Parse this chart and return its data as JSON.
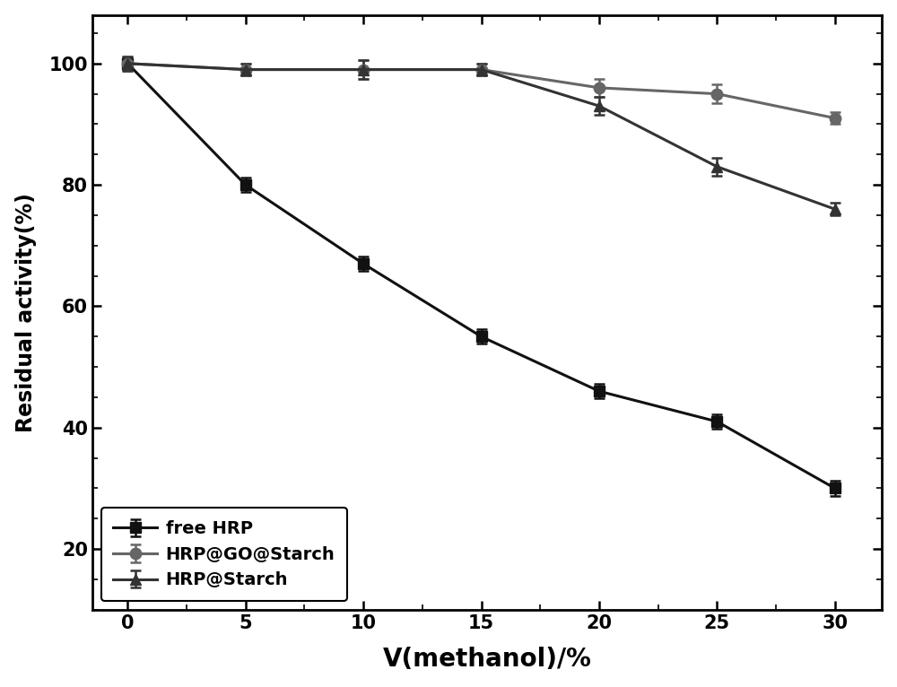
{
  "x": [
    0,
    5,
    10,
    15,
    20,
    25,
    30
  ],
  "free_hrp": [
    100,
    80,
    67,
    55,
    46,
    41,
    30
  ],
  "free_hrp_err": [
    1.2,
    1.2,
    1.2,
    1.2,
    1.2,
    1.2,
    1.2
  ],
  "hrp_go_starch": [
    100,
    99,
    99,
    99,
    96,
    95,
    91
  ],
  "hrp_go_starch_err": [
    1.0,
    1.0,
    1.5,
    1.0,
    1.5,
    1.5,
    1.0
  ],
  "hrp_starch": [
    100,
    99,
    99,
    99,
    93,
    83,
    76
  ],
  "hrp_starch_err": [
    1.0,
    1.0,
    1.5,
    1.0,
    1.5,
    1.5,
    1.0
  ],
  "xlabel": "V(methanol)/%",
  "ylabel": "Residual activity(%)",
  "ylim": [
    10,
    108
  ],
  "yticks": [
    20,
    40,
    60,
    80,
    100
  ],
  "xticks": [
    0,
    5,
    10,
    15,
    20,
    25,
    30
  ],
  "legend_labels": [
    "free HRP",
    "HRP@GO@Starch",
    "HRP@Starch"
  ],
  "line_color_free": "#111111",
  "line_color_go_starch": "#666666",
  "line_color_starch": "#333333",
  "background_color": "#ffffff"
}
